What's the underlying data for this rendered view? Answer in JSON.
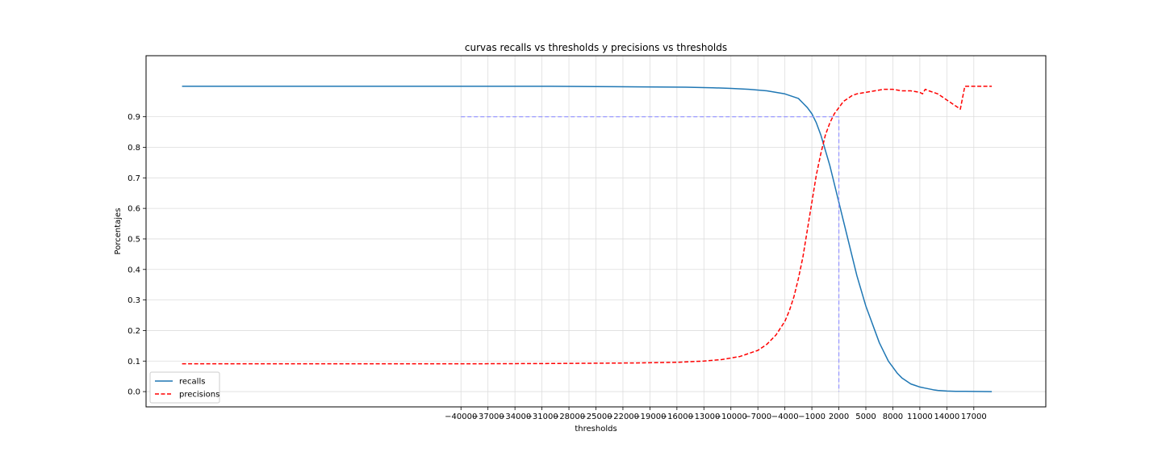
{
  "chart_data": {
    "type": "line",
    "title": "curvas recalls vs thresholds y precisions vs thresholds",
    "xlabel": "thresholds",
    "ylabel": "Porcentajes",
    "xlim": [
      -75000,
      25000
    ],
    "ylim": [
      -0.05,
      1.1
    ],
    "grid": true,
    "legend_position": "lower-left",
    "x_ticks": [
      -40000,
      -37000,
      -34000,
      -31000,
      -28000,
      -25000,
      -22000,
      -19000,
      -16000,
      -13000,
      -10000,
      -7000,
      -4000,
      -1000,
      2000,
      5000,
      8000,
      11000,
      14000,
      17000
    ],
    "x_tick_labels": [
      "−40000",
      "−37000",
      "−34000",
      "−31000",
      "−28000",
      "−25000",
      "−22000",
      "−19000",
      "−16000",
      "−13000",
      "−10000",
      "−7000",
      "−4000",
      "−1000",
      "2000",
      "5000",
      "8000",
      "11000",
      "14000",
      "17000"
    ],
    "y_ticks": [
      0.0,
      0.1,
      0.2,
      0.3,
      0.4,
      0.5,
      0.6,
      0.7,
      0.8,
      0.9
    ],
    "y_tick_labels": [
      "0.0",
      "0.1",
      "0.2",
      "0.3",
      "0.4",
      "0.5",
      "0.6",
      "0.7",
      "0.8",
      "0.9"
    ],
    "series": [
      {
        "name": "recalls",
        "color": "#1f77b4",
        "style": "solid",
        "x": [
          -71000,
          -60000,
          -50000,
          -40000,
          -30000,
          -25000,
          -20000,
          -15000,
          -12000,
          -10000,
          -8000,
          -6000,
          -5000,
          -4000,
          -3000,
          -2500,
          -2000,
          -1500,
          -1000,
          -500,
          0,
          500,
          1000,
          1500,
          2000,
          2500,
          3000,
          3500,
          4000,
          4500,
          5000,
          5500,
          6000,
          6500,
          7000,
          7500,
          8000,
          8500,
          9000,
          9500,
          10000,
          10500,
          11000,
          11500,
          12000,
          12500,
          13000,
          13500,
          14000,
          15000,
          16000,
          17000,
          18000,
          19000
        ],
        "y": [
          1.0,
          1.0,
          1.0,
          1.0,
          1.0,
          0.999,
          0.998,
          0.997,
          0.995,
          0.993,
          0.99,
          0.985,
          0.98,
          0.975,
          0.965,
          0.96,
          0.945,
          0.93,
          0.91,
          0.88,
          0.84,
          0.79,
          0.74,
          0.68,
          0.62,
          0.56,
          0.5,
          0.44,
          0.38,
          0.33,
          0.28,
          0.24,
          0.2,
          0.16,
          0.13,
          0.1,
          0.08,
          0.06,
          0.045,
          0.035,
          0.025,
          0.02,
          0.015,
          0.012,
          0.009,
          0.006,
          0.004,
          0.003,
          0.002,
          0.001,
          0.001,
          0.0005,
          0.0002,
          0.0
        ]
      },
      {
        "name": "precisions",
        "color": "#ff0000",
        "style": "dashed",
        "x": [
          -71000,
          -60000,
          -50000,
          -40000,
          -30000,
          -25000,
          -20000,
          -16000,
          -13000,
          -11000,
          -9000,
          -7000,
          -6000,
          -5000,
          -4000,
          -3500,
          -3000,
          -2500,
          -2000,
          -1500,
          -1000,
          -500,
          0,
          500,
          1000,
          1500,
          2000,
          2500,
          3000,
          3500,
          4000,
          5000,
          6000,
          7000,
          8000,
          9000,
          10000,
          11000,
          11300,
          11600,
          12000,
          13000,
          14000,
          14500,
          15000,
          15500,
          16000,
          19000
        ],
        "y": [
          0.091,
          0.091,
          0.091,
          0.091,
          0.092,
          0.093,
          0.094,
          0.096,
          0.1,
          0.105,
          0.115,
          0.135,
          0.155,
          0.185,
          0.23,
          0.265,
          0.31,
          0.37,
          0.44,
          0.53,
          0.62,
          0.71,
          0.78,
          0.84,
          0.88,
          0.91,
          0.93,
          0.95,
          0.96,
          0.97,
          0.975,
          0.98,
          0.985,
          0.99,
          0.99,
          0.985,
          0.985,
          0.98,
          0.975,
          0.99,
          0.985,
          0.975,
          0.955,
          0.945,
          0.935,
          0.925,
          1.0,
          1.0
        ]
      },
      {
        "name": "",
        "color": "#9999ff",
        "style": "dashed",
        "x": [
          -40000,
          2000,
          2000
        ],
        "y": [
          0.9,
          0.9,
          0.0
        ]
      }
    ]
  }
}
